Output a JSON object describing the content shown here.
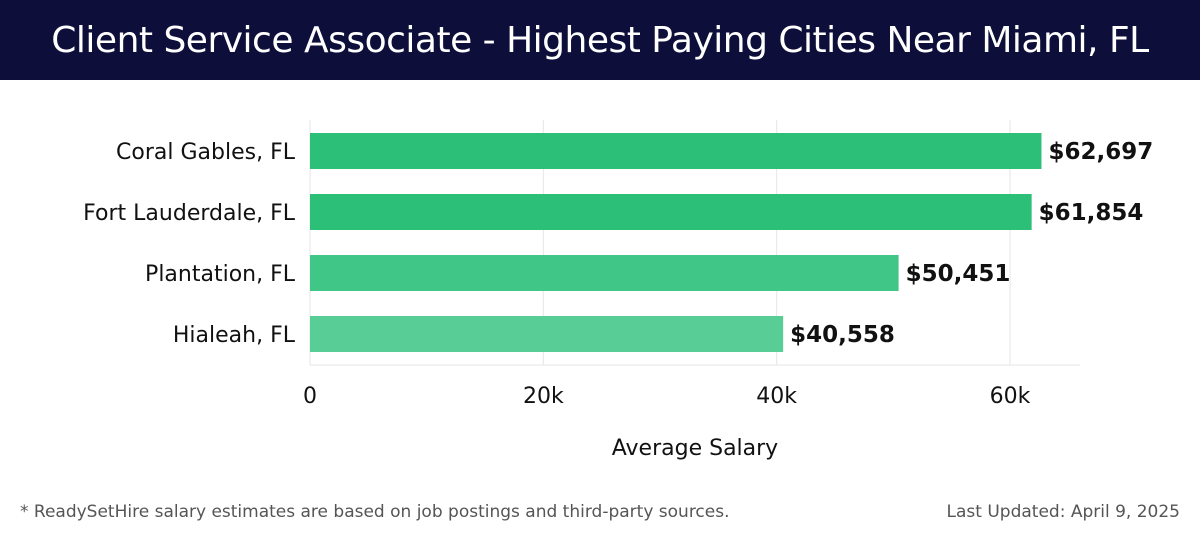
{
  "header": {
    "title": "Client Service Associate - Highest Paying Cities Near Miami, FL"
  },
  "chart_data": {
    "type": "bar",
    "orientation": "horizontal",
    "categories": [
      "Coral Gables, FL",
      "Fort Lauderdale, FL",
      "Plantation, FL",
      "Hialeah, FL"
    ],
    "values": [
      62697,
      61854,
      50451,
      40558
    ],
    "value_labels": [
      "$62,697",
      "$61,854",
      "$50,451",
      "$40,558"
    ],
    "xlabel": "Average Salary",
    "ylabel": "",
    "xlim": [
      0,
      66000
    ],
    "x_ticks": [
      0,
      20000,
      40000,
      60000
    ],
    "x_tick_labels": [
      "0",
      "20k",
      "40k",
      "60k"
    ],
    "grid": true,
    "bar_colors": [
      "#2bbf78",
      "#2bbf78",
      "#40c788",
      "#58cd96"
    ]
  },
  "footer": {
    "note": "* ReadySetHire salary estimates are based on job postings and third-party sources.",
    "updated": "Last Updated: April 9, 2025"
  }
}
